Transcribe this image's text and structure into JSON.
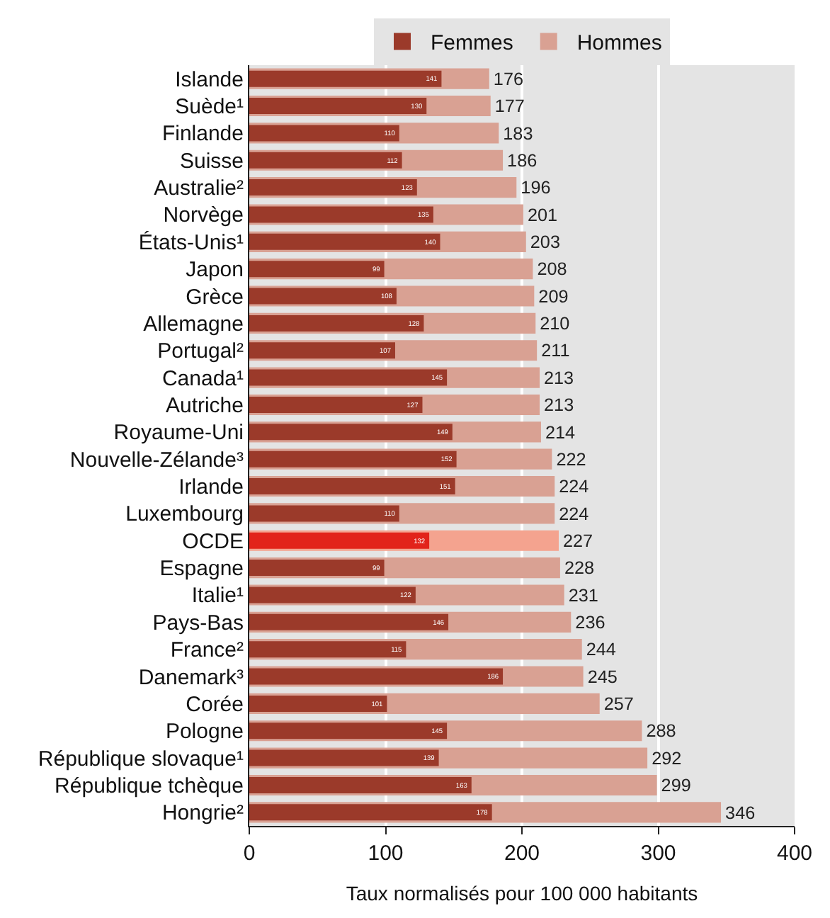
{
  "chart_data": {
    "type": "bar",
    "orientation": "horizontal",
    "xlabel": "Taux normalisés pour 100 000 habitants",
    "categories": [
      "Islande",
      "Suède¹",
      "Finlande",
      "Suisse",
      "Australie²",
      "Norvège",
      "États-Unis¹",
      "Japon",
      "Grèce",
      "Allemagne",
      "Portugal²",
      "Canada¹",
      "Autriche",
      "Royaume-Uni",
      "Nouvelle-Zélande³",
      "Irlande",
      "Luxembourg",
      "OCDE",
      "Espagne",
      "Italie¹",
      "Pays-Bas",
      "France²",
      "Danemark³",
      "Corée",
      "Pologne",
      "République slovaque¹",
      "République tchèque",
      "Hongrie²"
    ],
    "series": [
      {
        "name": "Hommes",
        "colors": [
          "#d9a193",
          "#d9a193",
          "#d9a193",
          "#d9a193",
          "#d9a193",
          "#d9a193",
          "#d9a193",
          "#d9a193",
          "#d9a193",
          "#d9a193",
          "#d9a193",
          "#d9a193",
          "#d9a193",
          "#d9a193",
          "#d9a193",
          "#d9a193",
          "#d9a193",
          "#f4a38f",
          "#d9a193",
          "#d9a193",
          "#d9a193",
          "#d9a193",
          "#d9a193",
          "#d9a193",
          "#d9a193",
          "#d9a193",
          "#d9a193",
          "#d9a193"
        ],
        "values": [
          176,
          177,
          183,
          186,
          196,
          201,
          203,
          208,
          209,
          210,
          211,
          213,
          213,
          214,
          222,
          224,
          224,
          227,
          228,
          231,
          236,
          244,
          245,
          257,
          288,
          292,
          299,
          346
        ]
      },
      {
        "name": "Femmes",
        "colors": [
          "#9b3a2a",
          "#9b3a2a",
          "#9b3a2a",
          "#9b3a2a",
          "#9b3a2a",
          "#9b3a2a",
          "#9b3a2a",
          "#9b3a2a",
          "#9b3a2a",
          "#9b3a2a",
          "#9b3a2a",
          "#9b3a2a",
          "#9b3a2a",
          "#9b3a2a",
          "#9b3a2a",
          "#9b3a2a",
          "#9b3a2a",
          "#e2231a",
          "#9b3a2a",
          "#9b3a2a",
          "#9b3a2a",
          "#9b3a2a",
          "#9b3a2a",
          "#9b3a2a",
          "#9b3a2a",
          "#9b3a2a",
          "#9b3a2a",
          "#9b3a2a"
        ],
        "values": [
          141,
          130,
          110,
          112,
          123,
          135,
          140,
          99,
          108,
          128,
          107,
          145,
          127,
          149,
          152,
          151,
          110,
          132,
          99,
          122,
          146,
          115,
          186,
          101,
          145,
          139,
          163,
          178
        ]
      }
    ],
    "xlim": [
      0,
      400
    ],
    "xticks": [
      0,
      100,
      200,
      300,
      400
    ],
    "grid": "x",
    "legend": "top",
    "data_labels": true
  }
}
